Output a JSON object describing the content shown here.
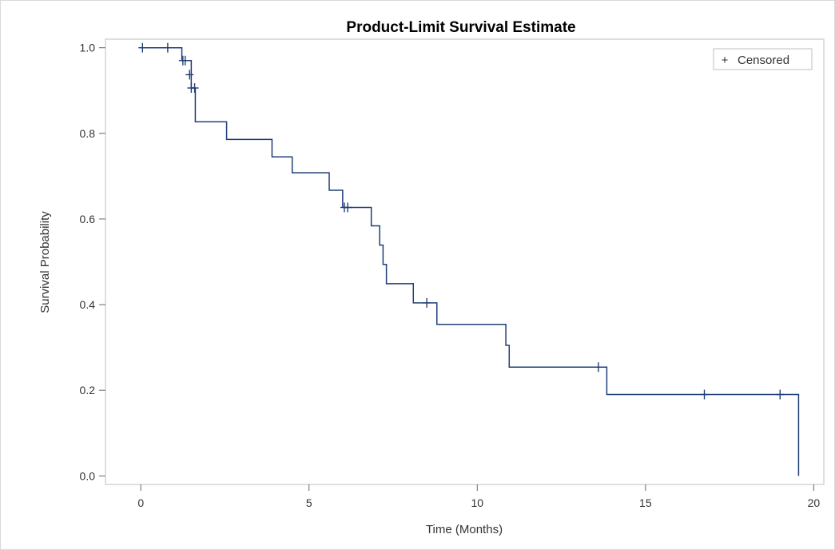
{
  "chart_data": {
    "type": "line",
    "subtype": "step",
    "title": "Product-Limit Survival Estimate",
    "xlabel": "Time (Months)",
    "ylabel": "Survival Probability",
    "xlim": [
      -1.05,
      20.3
    ],
    "ylim": [
      -0.02,
      1.02
    ],
    "xticks": [
      0,
      5,
      10,
      15,
      20
    ],
    "yticks": [
      0.0,
      0.2,
      0.4,
      0.6,
      0.8,
      1.0
    ],
    "xtick_labels": [
      "0",
      "5",
      "10",
      "15",
      "20"
    ],
    "ytick_labels": [
      "0.0",
      "0.2",
      "0.4",
      "0.6",
      "0.8",
      "1.0"
    ],
    "grid": false,
    "legend": {
      "position": "top-right",
      "entries": [
        {
          "symbol": "+",
          "label": "Censored"
        }
      ]
    },
    "colors": {
      "line": "#1f3f77",
      "axis": "#666666",
      "frame": "#bfbfbf"
    },
    "series": [
      {
        "steps": [
          [
            0.0,
            1.0
          ],
          [
            1.22,
            0.97
          ],
          [
            1.5,
            0.906
          ],
          [
            1.62,
            0.827
          ],
          [
            2.55,
            0.786
          ],
          [
            3.9,
            0.745
          ],
          [
            4.5,
            0.708
          ],
          [
            5.6,
            0.667
          ],
          [
            6.0,
            0.627
          ],
          [
            6.85,
            0.584
          ],
          [
            7.1,
            0.539
          ],
          [
            7.2,
            0.494
          ],
          [
            7.3,
            0.449
          ],
          [
            8.1,
            0.404
          ],
          [
            8.8,
            0.354
          ],
          [
            10.85,
            0.305
          ],
          [
            10.95,
            0.254
          ],
          [
            13.85,
            0.19
          ],
          [
            19.55,
            0.0
          ]
        ],
        "end_time": 19.55,
        "censored": [
          [
            0.05,
            1.0
          ],
          [
            0.8,
            1.0
          ],
          [
            1.25,
            0.97
          ],
          [
            1.32,
            0.97
          ],
          [
            1.45,
            0.937
          ],
          [
            1.5,
            0.906
          ],
          [
            1.6,
            0.906
          ],
          [
            6.05,
            0.627
          ],
          [
            6.15,
            0.627
          ],
          [
            8.5,
            0.404
          ],
          [
            13.6,
            0.254
          ],
          [
            16.75,
            0.19
          ],
          [
            19.0,
            0.19
          ]
        ]
      }
    ]
  }
}
